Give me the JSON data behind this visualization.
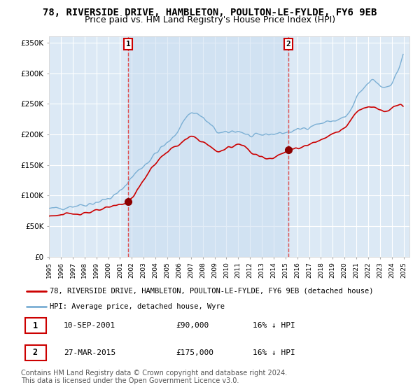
{
  "title": "78, RIVERSIDE DRIVE, HAMBLETON, POULTON-LE-FYLDE, FY6 9EB",
  "subtitle": "Price paid vs. HM Land Registry's House Price Index (HPI)",
  "ylabel_ticks": [
    "£0",
    "£50K",
    "£100K",
    "£150K",
    "£200K",
    "£250K",
    "£300K",
    "£350K"
  ],
  "ytick_values": [
    0,
    50000,
    100000,
    150000,
    200000,
    250000,
    300000,
    350000
  ],
  "ylim": [
    0,
    360000
  ],
  "xlim_start": 1995.0,
  "xlim_end": 2025.5,
  "background_color": "#dce9f5",
  "fig_bg_color": "#ffffff",
  "grid_color": "#ffffff",
  "hpi_line_color": "#7bafd4",
  "price_line_color": "#cc0000",
  "marker_color": "#8b0000",
  "dashed_line_color": "#e05050",
  "shade_color": "#c8dcf0",
  "legend_box_edge": "#aaaaaa",
  "transaction1_date": "10-SEP-2001",
  "transaction1_price": 90000,
  "transaction1_hpi_diff": "16% ↓ HPI",
  "transaction1_x": 2001.69,
  "transaction2_date": "27-MAR-2015",
  "transaction2_price": 175000,
  "transaction2_hpi_diff": "16% ↓ HPI",
  "transaction2_x": 2015.23,
  "legend_label_red": "78, RIVERSIDE DRIVE, HAMBLETON, POULTON-LE-FYLDE, FY6 9EB (detached house)",
  "legend_label_blue": "HPI: Average price, detached house, Wyre",
  "footer1": "Contains HM Land Registry data © Crown copyright and database right 2024.",
  "footer2": "This data is licensed under the Open Government Licence v3.0.",
  "title_fontsize": 10,
  "subtitle_fontsize": 9,
  "tick_fontsize": 7.5,
  "legend_fontsize": 8,
  "footer_fontsize": 7,
  "annotation_fontsize": 8
}
